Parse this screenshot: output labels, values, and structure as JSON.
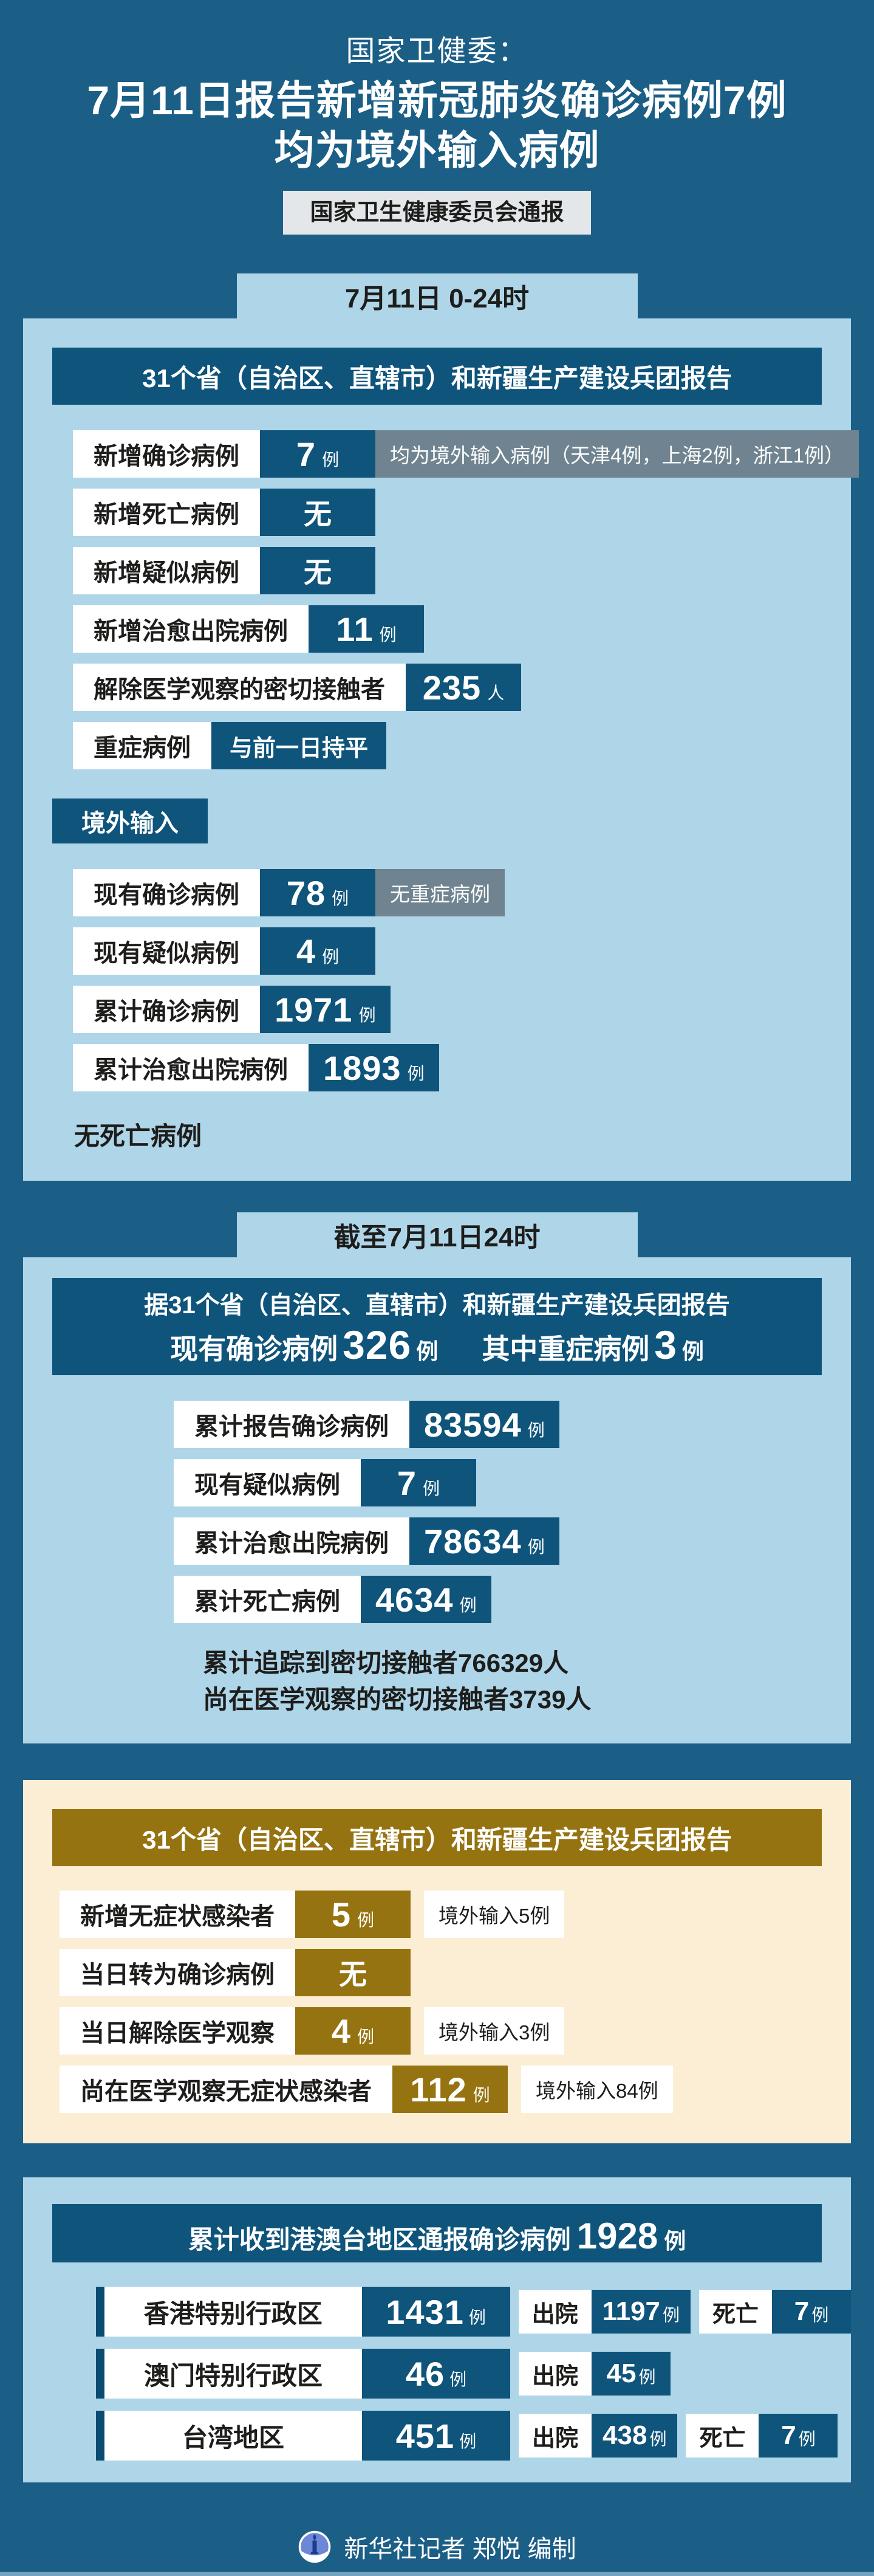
{
  "colors": {
    "background": "#1B5E86",
    "panel_blue": "#AFD5E9",
    "box_blue": "#0E547B",
    "note_gray": "#6F8490",
    "panel_cream": "#FBEED4",
    "box_gold": "#957310",
    "badge_gray": "#E3E7EA",
    "ink": "#1D1D1B",
    "bottom_strip": "#74A3C0"
  },
  "masthead": {
    "kicker": "国家卫健委：",
    "title_line1": "7月11日报告新增新冠肺炎确诊病例7例",
    "title_line2": "均为境外输入病例",
    "source_badge": "国家卫生健康委员会通报"
  },
  "section_daily": {
    "tab": "7月11日 0-24时",
    "header": "31个省（自治区、直辖市）和新疆生产建设兵团报告",
    "rows": [
      {
        "label": "新增确诊病例",
        "value": "7",
        "unit": "例",
        "note": "均为境外输入病例（天津4例，上海2例，浙江1例）"
      },
      {
        "label": "新增死亡病例",
        "value": "无"
      },
      {
        "label": "新增疑似病例",
        "value": "无"
      },
      {
        "label": "新增治愈出院病例",
        "value": "11",
        "unit": "例"
      },
      {
        "label": "解除医学观察的密切接触者",
        "value": "235",
        "unit": "人"
      },
      {
        "label": "重症病例",
        "value": "与前一日持平"
      }
    ],
    "imported_label": "境外输入",
    "imported_rows": [
      {
        "label": "现有确诊病例",
        "value": "78",
        "unit": "例",
        "note": "无重症病例"
      },
      {
        "label": "现有疑似病例",
        "value": "4",
        "unit": "例"
      },
      {
        "label": "累计确诊病例",
        "value": "1971",
        "unit": "例"
      },
      {
        "label": "累计治愈出院病例",
        "value": "1893",
        "unit": "例"
      }
    ],
    "no_death_note": "无死亡病例"
  },
  "section_cumulative": {
    "tab": "截至7月11日24时",
    "header_line1": "据31个省（自治区、直辖市）和新疆生产建设兵团报告",
    "headline": {
      "label1": "现有确诊病例",
      "value1": "326",
      "unit1": "例",
      "label2": "其中重症病例",
      "value2": "3",
      "unit2": "例"
    },
    "rows": [
      {
        "label": "累计报告确诊病例",
        "value": "83594",
        "unit": "例"
      },
      {
        "label": "现有疑似病例",
        "value": "7",
        "unit": "例"
      },
      {
        "label": "累计治愈出院病例",
        "value": "78634",
        "unit": "例"
      },
      {
        "label": "累计死亡病例",
        "value": "4634",
        "unit": "例"
      }
    ],
    "footnote_line1": "累计追踪到密切接触者766329人",
    "footnote_line2": "尚在医学观察的密切接触者3739人"
  },
  "section_asymptomatic": {
    "header": "31个省（自治区、直辖市）和新疆生产建设兵团报告",
    "rows": [
      {
        "label": "新增无症状感染者",
        "value": "5",
        "unit": "例",
        "note": "境外输入5例"
      },
      {
        "label": "当日转为确诊病例",
        "value": "无"
      },
      {
        "label": "当日解除医学观察",
        "value": "4",
        "unit": "例",
        "note": "境外输入3例"
      },
      {
        "label": "尚在医学观察无症状感染者",
        "value": "112",
        "unit": "例",
        "note": "境外输入84例"
      }
    ]
  },
  "section_hmt": {
    "header_prefix": "累计收到港澳台地区通报确诊病例",
    "header_value": "1928",
    "header_unit": "例",
    "rows": [
      {
        "region": "香港特别行政区",
        "value": "1431",
        "unit": "例",
        "stats": [
          {
            "label": "出院",
            "value": "1197",
            "unit": "例"
          },
          {
            "label": "死亡",
            "value": "7",
            "unit": "例"
          }
        ]
      },
      {
        "region": "澳门特别行政区",
        "value": "46",
        "unit": "例",
        "stats": [
          {
            "label": "出院",
            "value": "45",
            "unit": "例"
          }
        ]
      },
      {
        "region": "台湾地区",
        "value": "451",
        "unit": "例",
        "stats": [
          {
            "label": "出院",
            "value": "438",
            "unit": "例"
          },
          {
            "label": "死亡",
            "value": "7",
            "unit": "例"
          }
        ]
      }
    ]
  },
  "footer": {
    "credit": "新华社记者 郑悦 编制",
    "logo": "xinhua-logo"
  },
  "chart_data": [
    {
      "type": "table",
      "title": "7月11日 0-24时 31个省（自治区、直辖市）和新疆生产建设兵团报告",
      "rows": [
        [
          "新增确诊病例",
          "7例",
          "均为境外输入病例（天津4例，上海2例，浙江1例）"
        ],
        [
          "新增死亡病例",
          "无",
          ""
        ],
        [
          "新增疑似病例",
          "无",
          ""
        ],
        [
          "新增治愈出院病例",
          "11例",
          ""
        ],
        [
          "解除医学观察的密切接触者",
          "235人",
          ""
        ],
        [
          "重症病例",
          "与前一日持平",
          ""
        ]
      ]
    },
    {
      "type": "table",
      "title": "境外输入（7月11日 0-24时）",
      "rows": [
        [
          "现有确诊病例",
          "78例",
          "无重症病例"
        ],
        [
          "现有疑似病例",
          "4例",
          ""
        ],
        [
          "累计确诊病例",
          "1971例",
          ""
        ],
        [
          "累计治愈出院病例",
          "1893例",
          ""
        ],
        [
          "死亡病例",
          "无",
          ""
        ]
      ]
    },
    {
      "type": "table",
      "title": "截至7月11日24时 据31个省（自治区、直辖市）和新疆生产建设兵团报告",
      "rows": [
        [
          "现有确诊病例",
          "326例",
          "其中重症病例3例"
        ],
        [
          "累计报告确诊病例",
          "83594例",
          ""
        ],
        [
          "现有疑似病例",
          "7例",
          ""
        ],
        [
          "累计治愈出院病例",
          "78634例",
          ""
        ],
        [
          "累计死亡病例",
          "4634例",
          ""
        ],
        [
          "累计追踪到密切接触者",
          "766329人",
          ""
        ],
        [
          "尚在医学观察的密切接触者",
          "3739人",
          ""
        ]
      ]
    },
    {
      "type": "table",
      "title": "无症状感染者 31个省（自治区、直辖市）和新疆生产建设兵团报告",
      "rows": [
        [
          "新增无症状感染者",
          "5例",
          "境外输入5例"
        ],
        [
          "当日转为确诊病例",
          "无",
          ""
        ],
        [
          "当日解除医学观察",
          "4例",
          "境外输入3例"
        ],
        [
          "尚在医学观察无症状感染者",
          "112例",
          "境外输入84例"
        ]
      ]
    },
    {
      "type": "table",
      "title": "累计收到港澳台地区通报确诊病例1928例",
      "rows": [
        [
          "香港特别行政区",
          "1431例",
          "出院1197例",
          "死亡7例"
        ],
        [
          "澳门特别行政区",
          "46例",
          "出院45例",
          ""
        ],
        [
          "台湾地区",
          "451例",
          "出院438例",
          "死亡7例"
        ]
      ]
    }
  ]
}
